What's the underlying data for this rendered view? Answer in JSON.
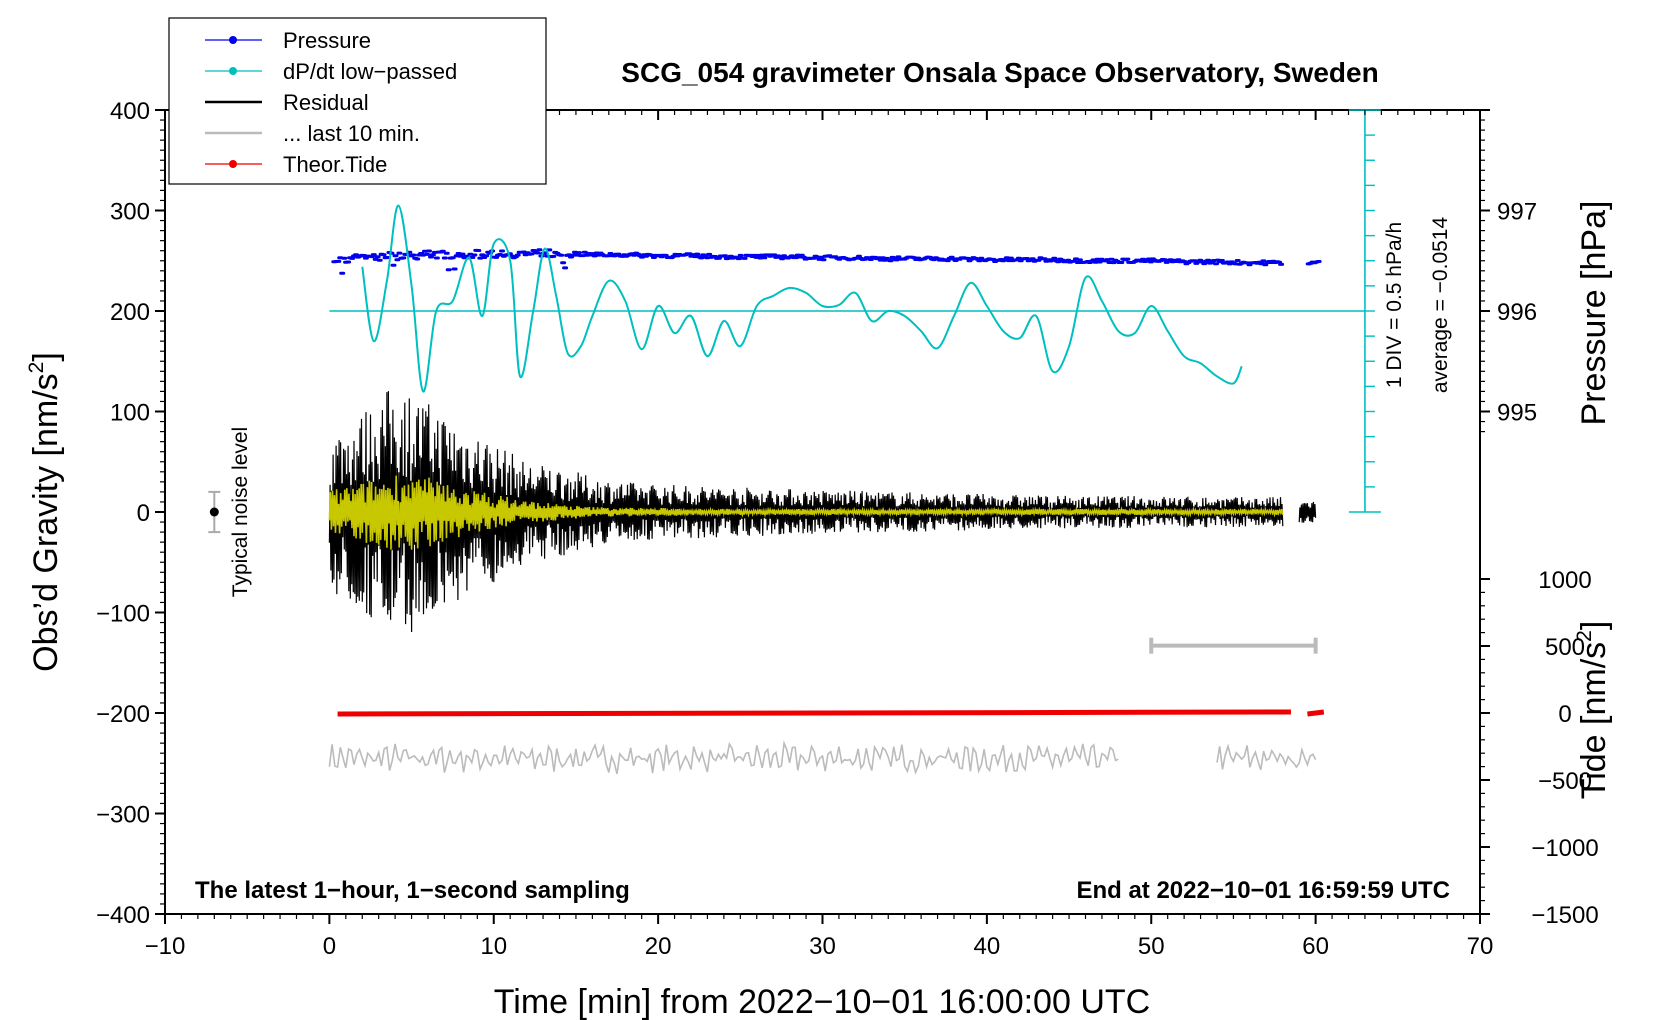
{
  "chart_data": {
    "type": "line",
    "title": "SCG_054 gravimeter Onsala Space Observatory, Sweden",
    "xlabel": "Time [min] from 2022−10−01 16:00:00 UTC",
    "ylabel_left_main": "Obs’d Gravity [nm/s",
    "ylabel_left_sup": "2",
    "ylabel_left_end": "]",
    "ylabel_right_pressure": "Pressure [hPa]",
    "ylabel_right_tide_main": "Tide [nm/s",
    "ylabel_right_tide_sup": "2",
    "ylabel_right_tide_end": "]",
    "xlim": [
      -10,
      70
    ],
    "ylim": [
      -400,
      400
    ],
    "x_ticks": [
      -10,
      0,
      10,
      20,
      30,
      40,
      50,
      60,
      70
    ],
    "x_tick_labels": [
      "−10",
      "0",
      "10",
      "20",
      "30",
      "40",
      "50",
      "60",
      "70"
    ],
    "y_ticks": [
      400,
      300,
      200,
      100,
      0,
      -100,
      -200,
      -300,
      -400
    ],
    "y_tick_labels": [
      "400",
      "300",
      "200",
      "100",
      "0",
      "−100",
      "−200",
      "−300",
      "−400"
    ],
    "pressure_ticks": [
      {
        "value": 997,
        "label": "997",
        "gravity_equiv": 300
      },
      {
        "value": 996,
        "label": "996",
        "gravity_equiv": 200
      },
      {
        "value": 995,
        "label": "995",
        "gravity_equiv": 100
      }
    ],
    "tide_ticks": [
      {
        "value": 1000,
        "label": "1000",
        "gravity_equiv": -66.67
      },
      {
        "value": 500,
        "label": "500",
        "gravity_equiv": -133.33
      },
      {
        "value": 0,
        "label": "0",
        "gravity_equiv": -200
      },
      {
        "value": -500,
        "label": "−500",
        "gravity_equiv": -266.67
      },
      {
        "value": -1000,
        "label": "−1000",
        "gravity_equiv": -333.33
      },
      {
        "value": -1500,
        "label": "−1500",
        "gravity_equiv": -400
      }
    ],
    "legend": [
      {
        "label": "Pressure",
        "color": "#0000ee",
        "marker": true
      },
      {
        "label": "dP/dt low−passed",
        "color": "#00bfbf",
        "marker": true
      },
      {
        "label": "Residual",
        "color": "#000000",
        "marker": false
      },
      {
        "label": "... last 10 min.",
        "color": "#bbbbbb",
        "marker": false
      },
      {
        "label": "Theor.Tide",
        "color": "#ee0000",
        "marker": true
      }
    ],
    "legend_position": "top-left",
    "annotations": {
      "sampling": "The latest 1−hour, 1−second sampling",
      "end_time": "End at 2022−10−01 16:59:59 UTC",
      "noise": "Typical noise level",
      "div_scale": "1 DIV = 0.5 hPa/h",
      "average": "average = −0.0514"
    },
    "noise_bar": {
      "x": -7,
      "center": 0,
      "half_range": 20
    },
    "last10_span": {
      "x_start": 50,
      "x_end": 60,
      "y": -133
    },
    "dpdt_scale": {
      "x": 63,
      "y_top": 400,
      "y_bottom": 0,
      "divisions": 16
    },
    "dpdt_baseline": 200,
    "series": [
      {
        "name": "Pressure",
        "color": "#0000ee",
        "unit": "gravity-axis units (996 hPa = 200)",
        "x": [
          0,
          2,
          4,
          6,
          8,
          10,
          12,
          14,
          16,
          18,
          20,
          22,
          24,
          26,
          28,
          30,
          32,
          34,
          36,
          38,
          40,
          42,
          44,
          46,
          48,
          50,
          52,
          54,
          56,
          58,
          60
        ],
        "values": [
          250,
          253,
          255,
          256,
          256,
          257,
          257,
          258,
          256,
          256,
          255,
          255,
          254,
          254,
          254,
          253,
          253,
          252,
          252,
          252,
          251,
          251,
          251,
          250,
          250,
          250,
          249,
          249,
          248,
          248,
          248
        ]
      },
      {
        "name": "dP/dt low-passed",
        "color": "#00bfbf",
        "unit": "gravity-axis units (baseline 200)",
        "x": [
          2,
          2.7,
          3.5,
          4.2,
          5,
          5.7,
          6.5,
          7.5,
          8.5,
          9.3,
          10,
          11,
          11.6,
          12.4,
          13.1,
          13.8,
          14.5,
          15.3,
          16,
          17,
          18,
          19,
          20,
          21,
          22,
          23,
          24,
          25,
          26,
          27,
          28,
          29,
          30,
          31,
          32,
          33,
          34,
          35,
          36,
          37,
          38,
          39,
          40,
          41,
          42,
          43,
          44,
          45,
          46,
          47,
          48,
          49,
          50,
          51,
          52,
          53,
          54,
          55,
          55.5
        ],
        "values": [
          244,
          170,
          230,
          305,
          225,
          120,
          200,
          210,
          253,
          195,
          267,
          250,
          135,
          200,
          262,
          215,
          158,
          165,
          195,
          230,
          210,
          162,
          205,
          178,
          195,
          155,
          190,
          165,
          205,
          215,
          223,
          218,
          205,
          206,
          218,
          190,
          200,
          195,
          180,
          163,
          195,
          228,
          205,
          180,
          173,
          195,
          140,
          165,
          233,
          210,
          180,
          178,
          205,
          180,
          155,
          148,
          135,
          128,
          145
        ]
      },
      {
        "name": "Residual",
        "color": "#000000",
        "unit": "nm/s^2",
        "x": [
          0,
          2,
          4,
          6,
          8,
          10,
          12,
          14,
          16,
          18,
          20,
          25,
          30,
          35,
          40,
          45,
          50,
          55,
          58,
          59,
          60
        ],
        "amplitude": [
          80,
          100,
          130,
          110,
          90,
          70,
          50,
          45,
          35,
          30,
          28,
          25,
          22,
          20,
          18,
          16,
          16,
          15,
          15,
          12,
          12
        ]
      },
      {
        "name": "Residual low-passed",
        "color": "#c8c800",
        "unit": "nm/s^2",
        "x": [
          0,
          2,
          4,
          6,
          8,
          10,
          12,
          14,
          16,
          20,
          25,
          30,
          40,
          50,
          58
        ],
        "amplitude": [
          22,
          30,
          40,
          35,
          25,
          18,
          12,
          8,
          5,
          4,
          3,
          3,
          3,
          3,
          3
        ]
      },
      {
        "name": "... last 10 min.",
        "color": "#bbbbbb",
        "unit": "nm/s^2",
        "segments": [
          [
            0,
            48
          ],
          [
            54,
            60
          ]
        ],
        "center": -245,
        "amplitude": 12
      },
      {
        "name": "Theor.Tide",
        "color": "#ee0000",
        "unit": "gravity-axis units (0 nm/s^2 tide = -200)",
        "segments": [
          [
            0.5,
            58.5
          ],
          [
            59.5,
            60.5
          ]
        ],
        "values_start": -201,
        "values_end": -199
      }
    ]
  }
}
